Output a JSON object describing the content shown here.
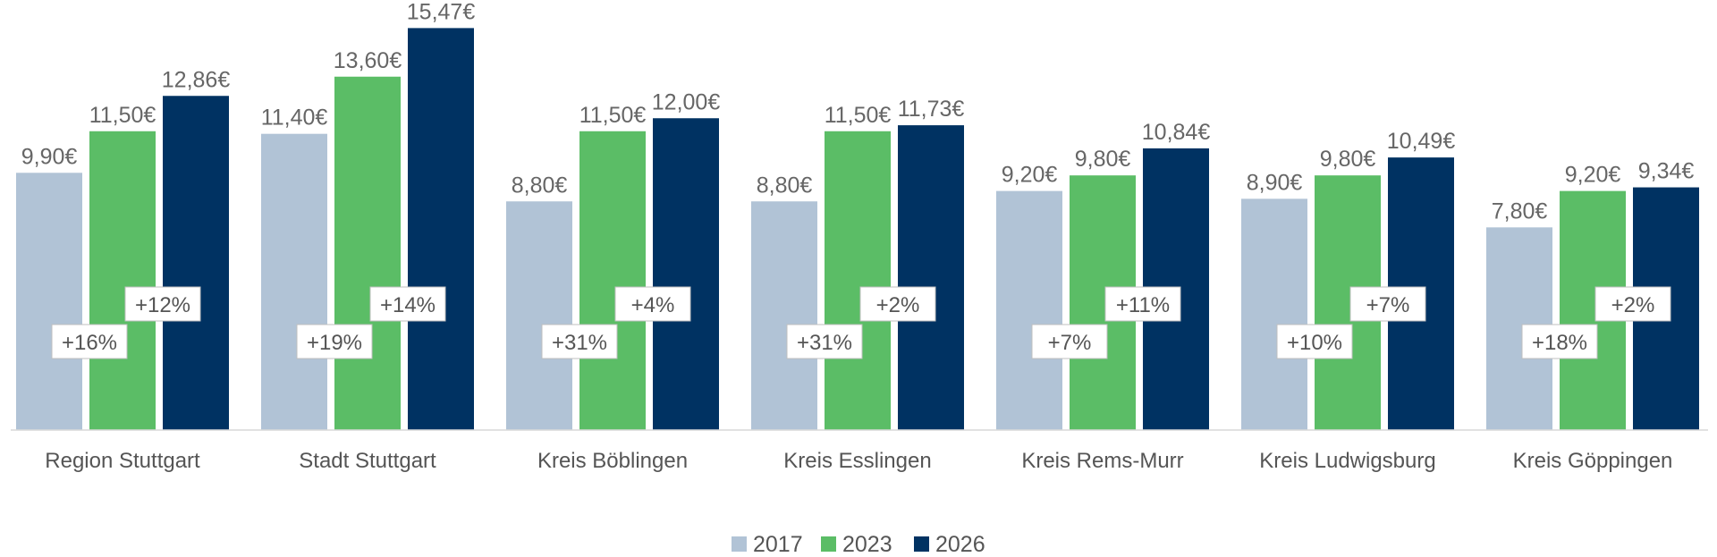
{
  "chart_data": {
    "type": "bar",
    "title": "",
    "xlabel": "",
    "ylabel": "",
    "ylim": [
      0,
      16
    ],
    "grid": false,
    "legend_position": "bottom-center",
    "value_unit": "€",
    "categories": [
      "Region Stuttgart",
      "Stadt Stuttgart",
      "Kreis Böblingen",
      "Kreis Esslingen",
      "Kreis Rems-Murr",
      "Kreis Ludwigsburg",
      "Kreis Göppingen"
    ],
    "series": [
      {
        "name": "2017",
        "color": "#b1c3d6",
        "values": [
          9.9,
          11.4,
          8.8,
          8.8,
          9.2,
          8.9,
          7.8
        ],
        "labels": [
          "9,90€",
          "11,40€",
          "8,80€",
          "8,80€",
          "9,20€",
          "8,90€",
          "7,80€"
        ]
      },
      {
        "name": "2023",
        "color": "#5bbd66",
        "values": [
          11.5,
          13.6,
          11.5,
          11.5,
          9.8,
          9.8,
          9.2
        ],
        "labels": [
          "11,50€",
          "13,60€",
          "11,50€",
          "11,50€",
          "9,80€",
          "9,80€",
          "9,20€"
        ]
      },
      {
        "name": "2026",
        "color": "#003262",
        "values": [
          12.86,
          15.47,
          12.0,
          11.73,
          10.84,
          10.49,
          9.34
        ],
        "labels": [
          "12,86€",
          "15,47€",
          "12,00€",
          "11,73€",
          "10,84€",
          "10,49€",
          "9,34€"
        ]
      }
    ],
    "changes_2017_2023": [
      "+16%",
      "+19%",
      "+31%",
      "+31%",
      "+7%",
      "+10%",
      "+18%"
    ],
    "changes_2023_2026": [
      "+12%",
      "+14%",
      "+4%",
      "+2%",
      "+11%",
      "+7%",
      "+2%"
    ]
  }
}
